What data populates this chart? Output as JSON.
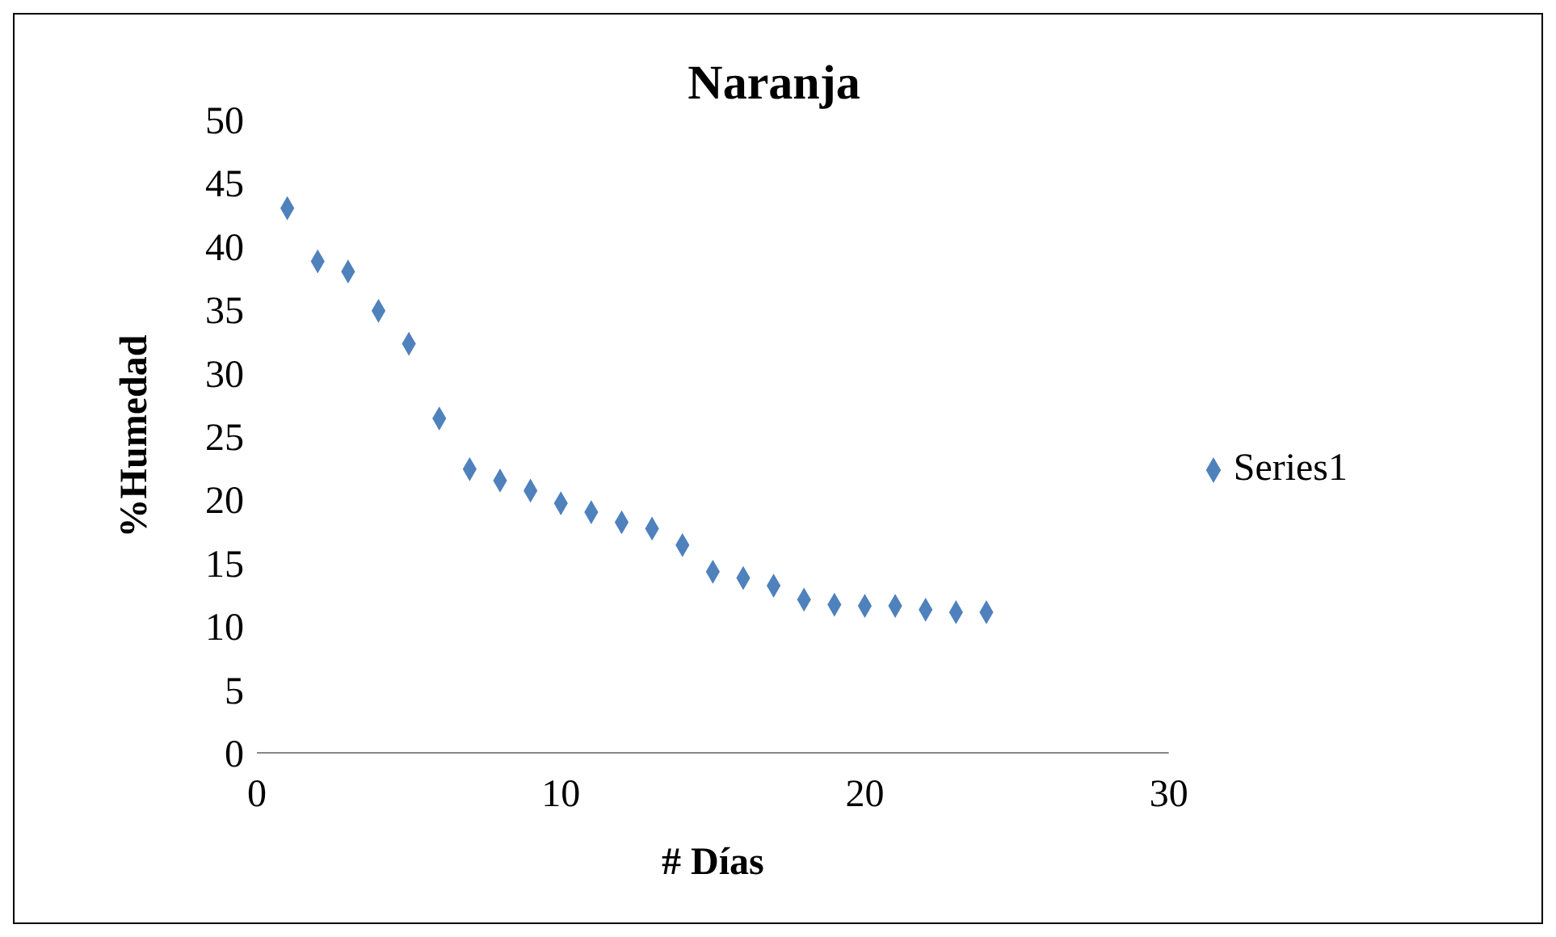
{
  "chart_data": {
    "type": "scatter",
    "title": "Naranja",
    "xlabel": "# Días",
    "ylabel": "%Humedad",
    "x": [
      1,
      2,
      3,
      4,
      5,
      6,
      7,
      8,
      9,
      10,
      11,
      12,
      13,
      14,
      15,
      16,
      17,
      18,
      19,
      20,
      21,
      22,
      23,
      24
    ],
    "series": [
      {
        "name": "Series1",
        "color": "#4f81bd",
        "values": [
          43,
          38.8,
          38,
          34.9,
          32.3,
          26.4,
          22.4,
          21.5,
          20.7,
          19.7,
          19,
          18.2,
          17.7,
          16.4,
          14.3,
          13.8,
          13.2,
          12.1,
          11.7,
          11.6,
          11.6,
          11.3,
          11.1,
          11.1
        ]
      }
    ],
    "xlim": [
      0,
      30
    ],
    "xticks": [
      0,
      10,
      20,
      30
    ],
    "ylim": [
      0,
      50
    ],
    "yticks": [
      0,
      5,
      10,
      15,
      20,
      25,
      30,
      35,
      40,
      45,
      50
    ],
    "marker": "diamond",
    "legend": "right",
    "grid": false
  }
}
